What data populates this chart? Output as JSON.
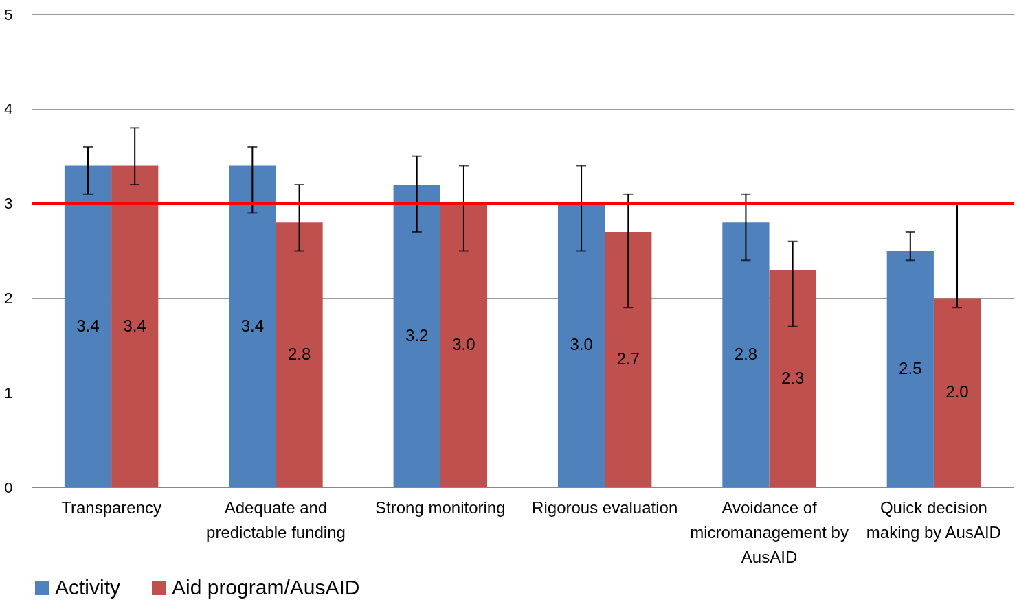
{
  "chart_data": {
    "type": "bar",
    "categories": [
      "Transparency",
      "Adequate and predictable funding",
      "Strong monitoring",
      "Rigorous evaluation",
      "Avoidance of micromanagement by AusAID",
      "Quick decision making by AusAID"
    ],
    "series": [
      {
        "name": "Activity",
        "color": "#4f81bd",
        "values": [
          3.4,
          3.4,
          3.2,
          3.0,
          2.8,
          2.5
        ],
        "errors": [
          [
            3.1,
            3.6
          ],
          [
            2.9,
            3.6
          ],
          [
            2.7,
            3.5
          ],
          [
            2.5,
            3.4
          ],
          [
            2.4,
            3.1
          ],
          [
            2.4,
            2.7
          ]
        ],
        "value_labels": [
          "3.4",
          "3.4",
          "3.2",
          "3.0",
          "2.8",
          "2.5"
        ]
      },
      {
        "name": "Aid program/AusAID",
        "color": "#c0504d",
        "values": [
          3.4,
          2.8,
          3.0,
          2.7,
          2.3,
          2.0
        ],
        "errors": [
          [
            3.2,
            3.8
          ],
          [
            2.5,
            3.2
          ],
          [
            2.5,
            3.4
          ],
          [
            1.9,
            3.1
          ],
          [
            1.7,
            2.6
          ],
          [
            1.9,
            3.0
          ]
        ],
        "value_labels": [
          "3.4",
          "2.8",
          "3.0",
          "2.7",
          "2.3",
          "2.0"
        ]
      }
    ],
    "ylim": [
      0,
      5
    ],
    "yticks": [
      0,
      1,
      2,
      3,
      4,
      5
    ],
    "grid": "y",
    "legend": "bottom",
    "ref_lines": [
      {
        "axis": "y",
        "value": 3,
        "color": "#ff0000"
      }
    ]
  }
}
